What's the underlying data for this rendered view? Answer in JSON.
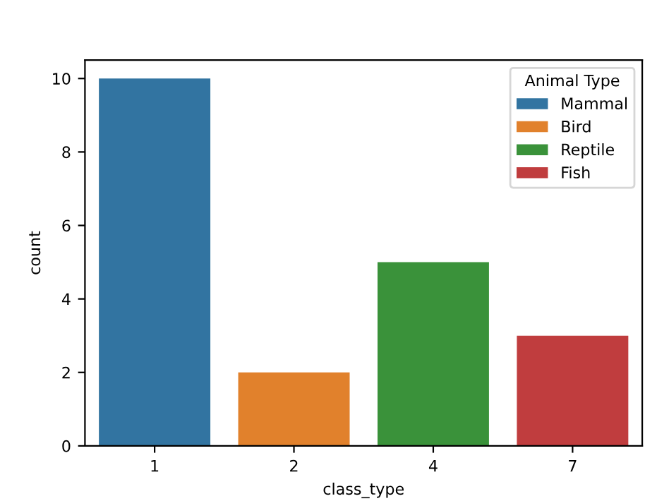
{
  "chart_data": {
    "type": "bar",
    "xlabel": "class_type",
    "ylabel": "count",
    "legend_title": "Animal Type",
    "categories": [
      "1",
      "2",
      "4",
      "7"
    ],
    "series": [
      {
        "name": "Mammal",
        "color": "#3274a1",
        "values": [
          10,
          null,
          null,
          null
        ]
      },
      {
        "name": "Bird",
        "color": "#e1812c",
        "values": [
          null,
          2,
          null,
          null
        ]
      },
      {
        "name": "Reptile",
        "color": "#3a923a",
        "values": [
          null,
          null,
          5,
          null
        ]
      },
      {
        "name": "Fish",
        "color": "#c03d3e",
        "values": [
          null,
          null,
          null,
          3
        ]
      }
    ],
    "ylim": [
      0,
      10.5
    ],
    "yticks": [
      0,
      2,
      4,
      6,
      8,
      10
    ],
    "grid": false,
    "legend": "top right"
  }
}
